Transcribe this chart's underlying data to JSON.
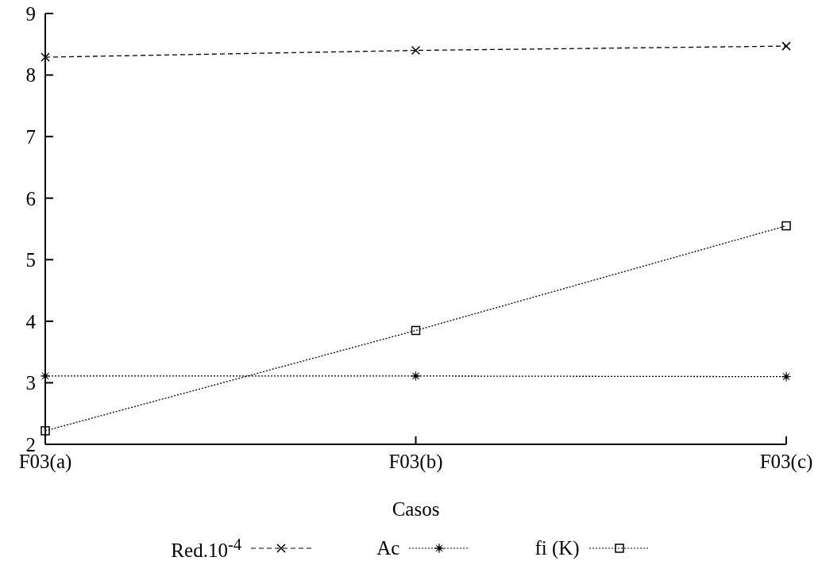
{
  "chart_data": {
    "type": "line",
    "xlabel": "Casos",
    "categories": [
      "F03(a)",
      "F03(b)",
      "F03(c)"
    ],
    "ylim": [
      2,
      9
    ],
    "yticks": [
      2,
      3,
      4,
      5,
      6,
      7,
      8,
      9
    ],
    "grid": false,
    "legend": "bottom",
    "series": [
      {
        "name": "Red.10$^{-4}$",
        "color": "#000000",
        "values": [
          8.29,
          8.4,
          8.47
        ],
        "marker": "cross",
        "line_style": "dashed"
      },
      {
        "name": "Ac",
        "color": "#000000",
        "values": [
          3.11,
          3.11,
          3.1
        ],
        "marker": "star",
        "line_style": "dotted"
      },
      {
        "name": "fi (K)",
        "color": "#000000",
        "values": [
          2.22,
          3.85,
          5.55
        ],
        "marker": "square",
        "line_style": "dotted"
      }
    ]
  }
}
